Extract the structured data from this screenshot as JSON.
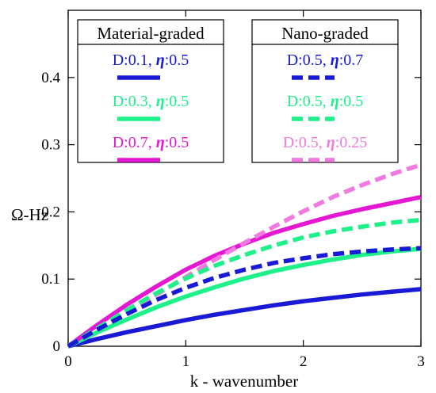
{
  "chart_data": {
    "type": "line",
    "xlabel": "k - wavenumber",
    "ylabel": "Ω-Hz",
    "xlim": [
      0,
      3
    ],
    "ylim": [
      0,
      0.5
    ],
    "xticks": [
      "0",
      "1",
      "2",
      "3"
    ],
    "yticks": [
      "0",
      "0.1",
      "0.2",
      "0.3",
      "0.4"
    ],
    "grid": false,
    "legend_groups": [
      {
        "title": "Material-graded",
        "entries": [
          {
            "D": "D:0.1",
            "eta": "0.5",
            "series_index": 0
          },
          {
            "D": "D:0.3",
            "eta": "0.5",
            "series_index": 1
          },
          {
            "D": "D:0.7",
            "eta": "0.5",
            "series_index": 2
          }
        ]
      },
      {
        "title": "Nano-graded",
        "entries": [
          {
            "D": "D:0.5",
            "eta": "0.7",
            "series_index": 3
          },
          {
            "D": "D:0.5",
            "eta": "0.5",
            "series_index": 4
          },
          {
            "D": "D:0.5",
            "eta": "0.25",
            "series_index": 5
          }
        ]
      }
    ],
    "x": [
      0,
      0.25,
      0.5,
      0.75,
      1.0,
      1.25,
      1.5,
      1.75,
      2.0,
      2.25,
      2.5,
      2.75,
      3.0
    ],
    "series": [
      {
        "color": "#1a1ad6",
        "style": "solid",
        "values": [
          0,
          0.011,
          0.021,
          0.03,
          0.039,
          0.047,
          0.054,
          0.061,
          0.067,
          0.072,
          0.077,
          0.081,
          0.085
        ]
      },
      {
        "color": "#1ef08a",
        "style": "solid",
        "values": [
          0,
          0.021,
          0.04,
          0.058,
          0.074,
          0.088,
          0.101,
          0.112,
          0.121,
          0.129,
          0.136,
          0.141,
          0.145
        ]
      },
      {
        "color": "#e617d2",
        "style": "solid",
        "values": [
          0,
          0.032,
          0.062,
          0.089,
          0.114,
          0.135,
          0.153,
          0.169,
          0.182,
          0.194,
          0.204,
          0.213,
          0.222
        ]
      },
      {
        "color": "#1a1ad6",
        "style": "dashed",
        "values": [
          0,
          0.025,
          0.048,
          0.069,
          0.087,
          0.102,
          0.114,
          0.124,
          0.131,
          0.137,
          0.141,
          0.144,
          0.146
        ]
      },
      {
        "color": "#1ef08a",
        "style": "dashed",
        "values": [
          0,
          0.027,
          0.054,
          0.079,
          0.101,
          0.12,
          0.136,
          0.15,
          0.162,
          0.171,
          0.178,
          0.184,
          0.188
        ]
      },
      {
        "color": "#f07ae0",
        "style": "dashed",
        "values": [
          0,
          0.025,
          0.051,
          0.077,
          0.103,
          0.129,
          0.154,
          0.178,
          0.201,
          0.222,
          0.24,
          0.256,
          0.27
        ]
      }
    ]
  }
}
